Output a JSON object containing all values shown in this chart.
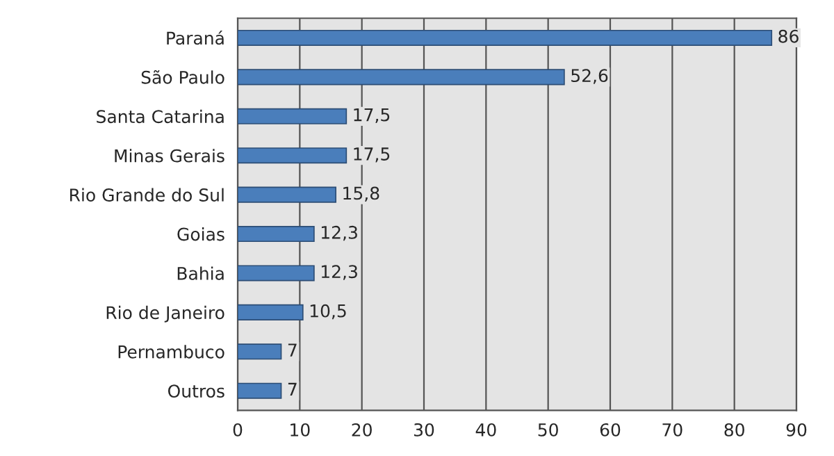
{
  "chart_data": {
    "type": "bar",
    "orientation": "horizontal",
    "categories": [
      "Paraná",
      "São Paulo",
      "Santa Catarina",
      "Minas Gerais",
      "Rio Grande do Sul",
      "Goias",
      "Bahia",
      "Rio de Janeiro",
      "Pernambuco",
      "Outros"
    ],
    "values": [
      86,
      52.6,
      17.5,
      17.5,
      15.8,
      12.3,
      12.3,
      10.5,
      7,
      7
    ],
    "value_labels": [
      "86",
      "52,6",
      "17,5",
      "17,5",
      "15,8",
      "12,3",
      "12,3",
      "10,5",
      "7",
      "7"
    ],
    "color": "#4a7ebb",
    "xlim": [
      0,
      90
    ],
    "xticks": [
      0,
      10,
      20,
      30,
      40,
      50,
      60,
      70,
      80,
      90
    ],
    "grid": "x"
  }
}
